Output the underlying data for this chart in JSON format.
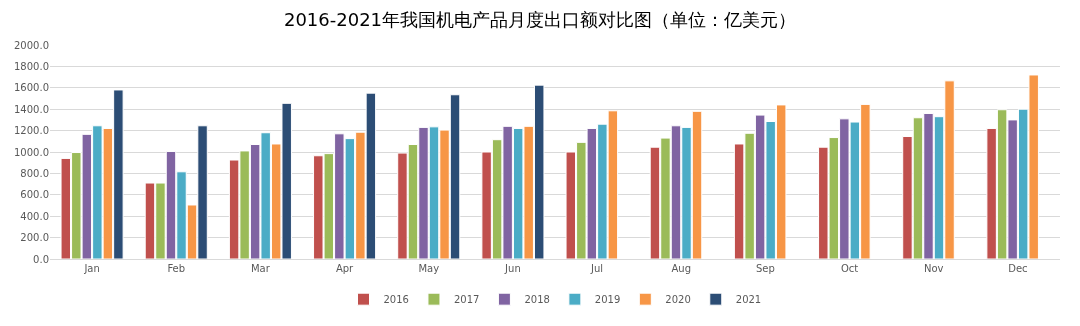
{
  "chart_data": {
    "type": "bar",
    "title": "2016-2021年我国机电产品月度出口额对比图（单位：亿美元）",
    "categories": [
      "Jan",
      "Feb",
      "Mar",
      "Apr",
      "May",
      "Jun",
      "Jul",
      "Aug",
      "Sep",
      "Oct",
      "Nov",
      "Dec"
    ],
    "series": [
      {
        "name": "2016",
        "color": "#c0504d",
        "values": [
          940,
          710,
          925,
          965,
          990,
          1000,
          1000,
          1045,
          1075,
          1045,
          1145,
          1220
        ]
      },
      {
        "name": "2017",
        "color": "#9bbb59",
        "values": [
          995,
          710,
          1010,
          985,
          1070,
          1115,
          1090,
          1130,
          1175,
          1135,
          1320,
          1395
        ]
      },
      {
        "name": "2018",
        "color": "#8064a2",
        "values": [
          1165,
          1005,
          1070,
          1170,
          1230,
          1240,
          1220,
          1245,
          1345,
          1310,
          1360,
          1300
        ]
      },
      {
        "name": "2019",
        "color": "#4bacc6",
        "values": [
          1245,
          815,
          1180,
          1125,
          1235,
          1220,
          1260,
          1230,
          1285,
          1280,
          1330,
          1400
        ]
      },
      {
        "name": "2020",
        "color": "#f79646",
        "values": [
          1220,
          505,
          1075,
          1185,
          1205,
          1240,
          1385,
          1380,
          1440,
          1445,
          1665,
          1720
        ]
      },
      {
        "name": "2021",
        "color": "#2c4d75",
        "values": [
          1580,
          1245,
          1455,
          1550,
          1535,
          1625,
          null,
          null,
          null,
          null,
          null,
          null
        ]
      }
    ],
    "ylim": [
      0,
      2000
    ],
    "yticks": [
      {
        "value": 0,
        "label": "0.0"
      },
      {
        "value": 200,
        "label": "200.0"
      },
      {
        "value": 400,
        "label": "400.0"
      },
      {
        "value": 600,
        "label": "600.0"
      },
      {
        "value": 800,
        "label": "800.0"
      },
      {
        "value": 1000,
        "label": "1000.0"
      },
      {
        "value": 1200,
        "label": "1200.0"
      },
      {
        "value": 1400,
        "label": "1400.0"
      },
      {
        "value": 1600,
        "label": "1600.0"
      },
      {
        "value": 1800,
        "label": "1800.0"
      },
      {
        "value": 2000,
        "label": "2000.0"
      }
    ],
    "grid": "y",
    "legend": "bottom"
  }
}
